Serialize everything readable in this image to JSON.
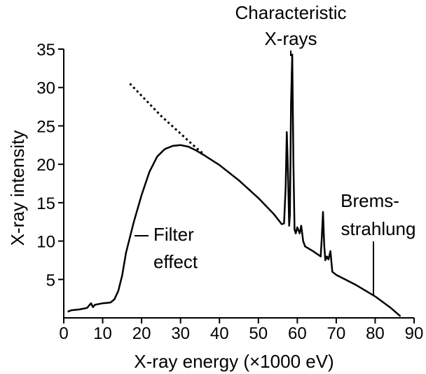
{
  "chart_data": {
    "type": "line",
    "title": "",
    "xlabel": "X-ray energy (×1000 eV)",
    "ylabel": "X-ray intensity",
    "xlim": [
      0,
      90
    ],
    "ylim": [
      0,
      35
    ],
    "x_ticks": [
      0,
      10,
      20,
      30,
      40,
      50,
      60,
      70,
      80,
      90
    ],
    "y_ticks": [
      5,
      10,
      15,
      20,
      25,
      30,
      35
    ],
    "grid": false,
    "legend": "none",
    "series": [
      {
        "style": "solid",
        "x": [
          1,
          2,
          4,
          6,
          7,
          7.5,
          8,
          10,
          12,
          13,
          14,
          15,
          16,
          18,
          20,
          22,
          24,
          26,
          28,
          30,
          32,
          34,
          36,
          40,
          45,
          50,
          54,
          56,
          56.6,
          57,
          57.3,
          57.6,
          57.9,
          58.1,
          58.4,
          58.7,
          59,
          59.3,
          59.6,
          60,
          60.6,
          61,
          61.5,
          62,
          64,
          66,
          66.3,
          66.6,
          66.9,
          67.2,
          67.6,
          68,
          68.5,
          69,
          70,
          75,
          80,
          84,
          86.5
        ],
        "y": [
          0.8,
          1.0,
          1.1,
          1.3,
          1.9,
          1.4,
          1.7,
          1.9,
          2.0,
          2.4,
          3.5,
          5.5,
          8.5,
          12.5,
          16.0,
          19.0,
          21.0,
          22.0,
          22.4,
          22.5,
          22.3,
          21.8,
          21.2,
          19.9,
          17.9,
          15.6,
          13.5,
          12.2,
          12.3,
          17.0,
          24.2,
          19.0,
          12.0,
          13.5,
          28.0,
          34.3,
          20.0,
          11.5,
          11.0,
          11.8,
          11.0,
          12.0,
          10.0,
          9.3,
          8.7,
          8.0,
          10.5,
          13.8,
          9.5,
          7.5,
          8.0,
          7.6,
          8.7,
          6.0,
          5.6,
          4.3,
          2.8,
          1.3,
          0.2
        ]
      },
      {
        "style": "dotted",
        "x": [
          17,
          25,
          30,
          33,
          36
        ],
        "y": [
          30.5,
          26.3,
          24.0,
          22.6,
          21.3
        ]
      }
    ],
    "annotations": [
      {
        "lines": [
          "Characteristic",
          "X-rays"
        ]
      },
      {
        "lines": [
          "Brems-",
          "strahlung"
        ]
      },
      {
        "lines": [
          "Filter",
          "effect"
        ]
      }
    ]
  }
}
